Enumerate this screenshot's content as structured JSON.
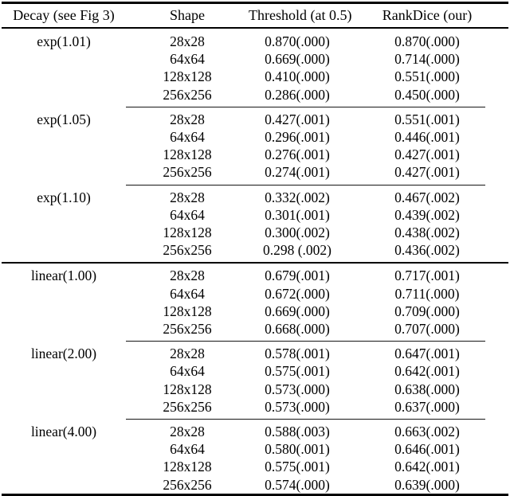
{
  "page": {
    "background_color": "#ffffff",
    "text_color": "#000000",
    "rule_color": "#000000"
  },
  "table": {
    "headers": [
      "Decay (see Fig 3)",
      "Shape",
      "Threshold (at 0.5)",
      "RankDice (our)"
    ],
    "header_keys": [
      "decay",
      "shape",
      "threshold",
      "rankdice"
    ],
    "groups": [
      {
        "decay": "exp(1.01)",
        "rule_before": "none",
        "rows": [
          {
            "shape": "28x28",
            "threshold": "0.870(.000)",
            "rankdice": "0.870(.000)"
          },
          {
            "shape": "64x64",
            "threshold": "0.669(.000)",
            "rankdice": "0.714(.000)"
          },
          {
            "shape": "128x128",
            "threshold": "0.410(.000)",
            "rankdice": "0.551(.000)"
          },
          {
            "shape": "256x256",
            "threshold": "0.286(.000)",
            "rankdice": "0.450(.000)"
          }
        ]
      },
      {
        "decay": "exp(1.05)",
        "rule_before": "partial",
        "rows": [
          {
            "shape": "28x28",
            "threshold": "0.427(.001)",
            "rankdice": "0.551(.001)"
          },
          {
            "shape": "64x64",
            "threshold": "0.296(.001)",
            "rankdice": "0.446(.001)"
          },
          {
            "shape": "128x128",
            "threshold": "0.276(.001)",
            "rankdice": "0.427(.001)"
          },
          {
            "shape": "256x256",
            "threshold": "0.274(.001)",
            "rankdice": "0.427(.001)"
          }
        ]
      },
      {
        "decay": "exp(1.10)",
        "rule_before": "partial",
        "rows": [
          {
            "shape": "28x28",
            "threshold": "0.332(.002)",
            "rankdice": "0.467(.002)"
          },
          {
            "shape": "64x64",
            "threshold": "0.301(.001)",
            "rankdice": "0.439(.002)"
          },
          {
            "shape": "128x128",
            "threshold": "0.300(.002)",
            "rankdice": "0.438(.002)"
          },
          {
            "shape": "256x256",
            "threshold": "0.298 (.002)",
            "rankdice": "0.436(.002)"
          }
        ]
      },
      {
        "decay": "linear(1.00)",
        "rule_before": "full",
        "rows": [
          {
            "shape": "28x28",
            "threshold": "0.679(.001)",
            "rankdice": "0.717(.001)"
          },
          {
            "shape": "64x64",
            "threshold": "0.672(.000)",
            "rankdice": "0.711(.000)"
          },
          {
            "shape": "128x128",
            "threshold": "0.669(.000)",
            "rankdice": "0.709(.000)"
          },
          {
            "shape": "256x256",
            "threshold": "0.668(.000)",
            "rankdice": "0.707(.000)"
          }
        ]
      },
      {
        "decay": "linear(2.00)",
        "rule_before": "partial",
        "rows": [
          {
            "shape": "28x28",
            "threshold": "0.578(.001)",
            "rankdice": "0.647(.001)"
          },
          {
            "shape": "64x64",
            "threshold": "0.575(.001)",
            "rankdice": "0.642(.001)"
          },
          {
            "shape": "128x128",
            "threshold": "0.573(.000)",
            "rankdice": "0.638(.000)"
          },
          {
            "shape": "256x256",
            "threshold": "0.573(.000)",
            "rankdice": "0.637(.000)"
          }
        ]
      },
      {
        "decay": "linear(4.00)",
        "rule_before": "partial",
        "rows": [
          {
            "shape": "28x28",
            "threshold": "0.588(.003)",
            "rankdice": "0.663(.002)"
          },
          {
            "shape": "64x64",
            "threshold": "0.580(.001)",
            "rankdice": "0.646(.001)"
          },
          {
            "shape": "128x128",
            "threshold": "0.575(.001)",
            "rankdice": "0.642(.001)"
          },
          {
            "shape": "256x256",
            "threshold": "0.574(.000)",
            "rankdice": "0.639(.000)"
          }
        ]
      }
    ]
  }
}
